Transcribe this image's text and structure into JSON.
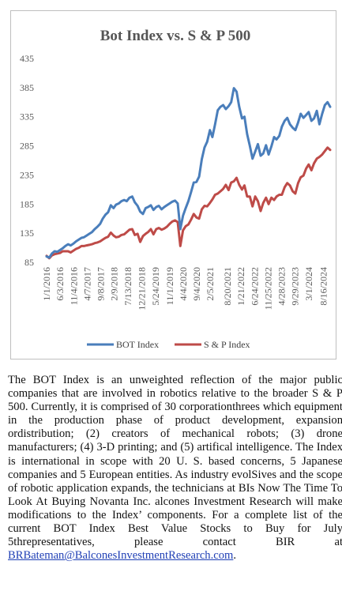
{
  "chart_data": {
    "type": "line",
    "title": "Bot Index vs. S & P 500",
    "xlabel": "",
    "ylabel": "",
    "ylim": [
      85,
      435
    ],
    "yticks": [
      85,
      135,
      185,
      235,
      285,
      335,
      385,
      435
    ],
    "xlim": [
      "2016-01-01",
      "2024-10-31"
    ],
    "xticks": [
      "1/1/2016",
      "6/3/2016",
      "11/4/2016",
      "4/7/2017",
      "9/8/2017",
      "2/9/2018",
      "7/13/2018",
      "12/21/2018",
      "5/24/2019",
      "11/1/2019",
      "4/4/2020",
      "9/4/2020",
      "2/5/2021",
      "8/20/2021",
      "1/21/2022",
      "6/24/2022",
      "11/25/2022",
      "4/28/2023",
      "9/29/2023",
      "3/1/2024",
      "8/16/2024"
    ],
    "grid": false,
    "legend_position": "bottom",
    "series": [
      {
        "name": "BOT Index",
        "color": "#4a7ebb",
        "points": [
          [
            "2016-01-01",
            95
          ],
          [
            "2016-02-01",
            93
          ],
          [
            "2016-03-01",
            100
          ],
          [
            "2016-04-01",
            104
          ],
          [
            "2016-05-01",
            103
          ],
          [
            "2016-06-01",
            106
          ],
          [
            "2016-07-01",
            109
          ],
          [
            "2016-08-01",
            113
          ],
          [
            "2016-09-01",
            116
          ],
          [
            "2016-10-01",
            114
          ],
          [
            "2016-11-01",
            117
          ],
          [
            "2016-12-01",
            121
          ],
          [
            "2017-01-01",
            124
          ],
          [
            "2017-02-01",
            127
          ],
          [
            "2017-03-01",
            128
          ],
          [
            "2017-04-01",
            131
          ],
          [
            "2017-05-01",
            134
          ],
          [
            "2017-06-01",
            137
          ],
          [
            "2017-07-01",
            142
          ],
          [
            "2017-08-01",
            146
          ],
          [
            "2017-09-01",
            151
          ],
          [
            "2017-10-01",
            160
          ],
          [
            "2017-11-01",
            167
          ],
          [
            "2017-12-01",
            171
          ],
          [
            "2018-01-01",
            183
          ],
          [
            "2018-02-01",
            178
          ],
          [
            "2018-03-01",
            184
          ],
          [
            "2018-04-01",
            186
          ],
          [
            "2018-05-01",
            190
          ],
          [
            "2018-06-01",
            192
          ],
          [
            "2018-07-01",
            190
          ],
          [
            "2018-08-01",
            196
          ],
          [
            "2018-09-01",
            198
          ],
          [
            "2018-10-01",
            188
          ],
          [
            "2018-11-01",
            182
          ],
          [
            "2018-12-01",
            172
          ],
          [
            "2019-01-01",
            168
          ],
          [
            "2019-02-01",
            178
          ],
          [
            "2019-03-01",
            180
          ],
          [
            "2019-04-01",
            183
          ],
          [
            "2019-05-01",
            175
          ],
          [
            "2019-06-01",
            180
          ],
          [
            "2019-07-01",
            182
          ],
          [
            "2019-08-01",
            176
          ],
          [
            "2019-09-01",
            180
          ],
          [
            "2019-10-01",
            183
          ],
          [
            "2019-11-01",
            186
          ],
          [
            "2019-12-01",
            189
          ],
          [
            "2020-01-01",
            191
          ],
          [
            "2020-02-01",
            186
          ],
          [
            "2020-03-01",
            142
          ],
          [
            "2020-04-01",
            165
          ],
          [
            "2020-05-01",
            178
          ],
          [
            "2020-06-01",
            190
          ],
          [
            "2020-07-01",
            205
          ],
          [
            "2020-08-01",
            222
          ],
          [
            "2020-09-01",
            223
          ],
          [
            "2020-10-01",
            232
          ],
          [
            "2020-11-01",
            262
          ],
          [
            "2020-12-01",
            282
          ],
          [
            "2021-01-01",
            292
          ],
          [
            "2021-02-01",
            312
          ],
          [
            "2021-03-01",
            300
          ],
          [
            "2021-04-01",
            322
          ],
          [
            "2021-05-01",
            346
          ],
          [
            "2021-06-01",
            352
          ],
          [
            "2021-07-01",
            355
          ],
          [
            "2021-08-01",
            348
          ],
          [
            "2021-09-01",
            353
          ],
          [
            "2021-10-01",
            360
          ],
          [
            "2021-11-01",
            384
          ],
          [
            "2021-12-01",
            378
          ],
          [
            "2022-01-01",
            352
          ],
          [
            "2022-02-01",
            332
          ],
          [
            "2022-03-01",
            335
          ],
          [
            "2022-04-01",
            305
          ],
          [
            "2022-05-01",
            285
          ],
          [
            "2022-06-01",
            263
          ],
          [
            "2022-07-01",
            275
          ],
          [
            "2022-08-01",
            288
          ],
          [
            "2022-09-01",
            268
          ],
          [
            "2022-10-01",
            272
          ],
          [
            "2022-11-01",
            286
          ],
          [
            "2022-12-01",
            270
          ],
          [
            "2023-01-01",
            284
          ],
          [
            "2023-02-01",
            300
          ],
          [
            "2023-03-01",
            296
          ],
          [
            "2023-04-01",
            302
          ],
          [
            "2023-05-01",
            318
          ],
          [
            "2023-06-01",
            328
          ],
          [
            "2023-07-01",
            333
          ],
          [
            "2023-08-01",
            322
          ],
          [
            "2023-09-01",
            316
          ],
          [
            "2023-10-01",
            312
          ],
          [
            "2023-11-01",
            325
          ],
          [
            "2023-12-01",
            340
          ],
          [
            "2024-01-01",
            333
          ],
          [
            "2024-02-01",
            338
          ],
          [
            "2024-03-01",
            343
          ],
          [
            "2024-04-01",
            328
          ],
          [
            "2024-05-01",
            332
          ],
          [
            "2024-06-01",
            345
          ],
          [
            "2024-07-01",
            322
          ],
          [
            "2024-08-01",
            340
          ],
          [
            "2024-09-01",
            355
          ],
          [
            "2024-10-01",
            360
          ],
          [
            "2024-10-31",
            352
          ]
        ]
      },
      {
        "name": "S & P Index",
        "color": "#be4b48",
        "points": [
          [
            "2016-01-01",
            96
          ],
          [
            "2016-02-01",
            92
          ],
          [
            "2016-03-01",
            97
          ],
          [
            "2016-04-01",
            99
          ],
          [
            "2016-05-01",
            100
          ],
          [
            "2016-06-01",
            101
          ],
          [
            "2016-07-01",
            104
          ],
          [
            "2016-08-01",
            104
          ],
          [
            "2016-09-01",
            104
          ],
          [
            "2016-10-01",
            102
          ],
          [
            "2016-11-01",
            105
          ],
          [
            "2016-12-01",
            108
          ],
          [
            "2017-01-01",
            110
          ],
          [
            "2017-02-01",
            113
          ],
          [
            "2017-03-01",
            113
          ],
          [
            "2017-04-01",
            114
          ],
          [
            "2017-05-01",
            115
          ],
          [
            "2017-06-01",
            116
          ],
          [
            "2017-07-01",
            118
          ],
          [
            "2017-08-01",
            119
          ],
          [
            "2017-09-01",
            121
          ],
          [
            "2017-10-01",
            124
          ],
          [
            "2017-11-01",
            127
          ],
          [
            "2017-12-01",
            129
          ],
          [
            "2018-01-01",
            136
          ],
          [
            "2018-02-01",
            131
          ],
          [
            "2018-03-01",
            128
          ],
          [
            "2018-04-01",
            129
          ],
          [
            "2018-05-01",
            132
          ],
          [
            "2018-06-01",
            133
          ],
          [
            "2018-07-01",
            137
          ],
          [
            "2018-08-01",
            141
          ],
          [
            "2018-09-01",
            142
          ],
          [
            "2018-10-01",
            132
          ],
          [
            "2018-11-01",
            134
          ],
          [
            "2018-12-01",
            120
          ],
          [
            "2019-01-01",
            130
          ],
          [
            "2019-02-01",
            134
          ],
          [
            "2019-03-01",
            137
          ],
          [
            "2019-04-01",
            142
          ],
          [
            "2019-05-01",
            133
          ],
          [
            "2019-06-01",
            142
          ],
          [
            "2019-07-01",
            144
          ],
          [
            "2019-08-01",
            141
          ],
          [
            "2019-09-01",
            143
          ],
          [
            "2019-10-01",
            146
          ],
          [
            "2019-11-01",
            151
          ],
          [
            "2019-12-01",
            155
          ],
          [
            "2020-01-01",
            157
          ],
          [
            "2020-02-01",
            154
          ],
          [
            "2020-03-01",
            113
          ],
          [
            "2020-04-01",
            140
          ],
          [
            "2020-05-01",
            147
          ],
          [
            "2020-06-01",
            150
          ],
          [
            "2020-07-01",
            158
          ],
          [
            "2020-08-01",
            168
          ],
          [
            "2020-09-01",
            162
          ],
          [
            "2020-10-01",
            160
          ],
          [
            "2020-11-01",
            176
          ],
          [
            "2020-12-01",
            182
          ],
          [
            "2021-01-01",
            181
          ],
          [
            "2021-02-01",
            187
          ],
          [
            "2021-03-01",
            193
          ],
          [
            "2021-04-01",
            201
          ],
          [
            "2021-05-01",
            203
          ],
          [
            "2021-06-01",
            207
          ],
          [
            "2021-07-01",
            211
          ],
          [
            "2021-08-01",
            218
          ],
          [
            "2021-09-01",
            209
          ],
          [
            "2021-10-01",
            222
          ],
          [
            "2021-11-01",
            224
          ],
          [
            "2021-12-01",
            230
          ],
          [
            "2022-01-01",
            218
          ],
          [
            "2022-02-01",
            210
          ],
          [
            "2022-03-01",
            217
          ],
          [
            "2022-04-01",
            198
          ],
          [
            "2022-05-01",
            198
          ],
          [
            "2022-06-01",
            181
          ],
          [
            "2022-07-01",
            198
          ],
          [
            "2022-08-01",
            190
          ],
          [
            "2022-09-01",
            173
          ],
          [
            "2022-10-01",
            187
          ],
          [
            "2022-11-01",
            196
          ],
          [
            "2022-12-01",
            185
          ],
          [
            "2023-01-01",
            196
          ],
          [
            "2023-02-01",
            192
          ],
          [
            "2023-03-01",
            198
          ],
          [
            "2023-04-01",
            201
          ],
          [
            "2023-05-01",
            201
          ],
          [
            "2023-06-01",
            214
          ],
          [
            "2023-07-01",
            221
          ],
          [
            "2023-08-01",
            217
          ],
          [
            "2023-09-01",
            207
          ],
          [
            "2023-10-01",
            203
          ],
          [
            "2023-11-01",
            221
          ],
          [
            "2023-12-01",
            231
          ],
          [
            "2024-01-01",
            234
          ],
          [
            "2024-02-01",
            246
          ],
          [
            "2024-03-01",
            253
          ],
          [
            "2024-04-01",
            243
          ],
          [
            "2024-05-01",
            255
          ],
          [
            "2024-06-01",
            263
          ],
          [
            "2024-07-01",
            266
          ],
          [
            "2024-08-01",
            270
          ],
          [
            "2024-09-01",
            276
          ],
          [
            "2024-10-01",
            282
          ],
          [
            "2024-10-31",
            278
          ]
        ]
      }
    ]
  },
  "description": {
    "body": "The BOT Index is an unweighted reflection of the major public companies that are involved in robotics relative to the broader S & P 500. Currently, it is comprised of 30 corporationthrees which equipment in the production phase of product development, expansion ordistribution; (2) creators of mechanical robots; (3) drone manufacturers; (4) 3-D printing; and (5) artifical intelligence. The Index is international in scope with 20 U. S. based concerns, 5 Japanese companies and 5 European entities. As industry evolSives and the scope of robotic application expands, the technicians at BIs Now The Time To Look At Buying Novanta Inc. alcones Investment Research will make modifications to the Index’ components. For a  complete list of the current BOT Index Best Value Stocks to Buy for July 5threpresentatives, please contact BIR at ",
    "email": "BRBateman@BalconesInvestmentResearch.com",
    "end": "."
  }
}
